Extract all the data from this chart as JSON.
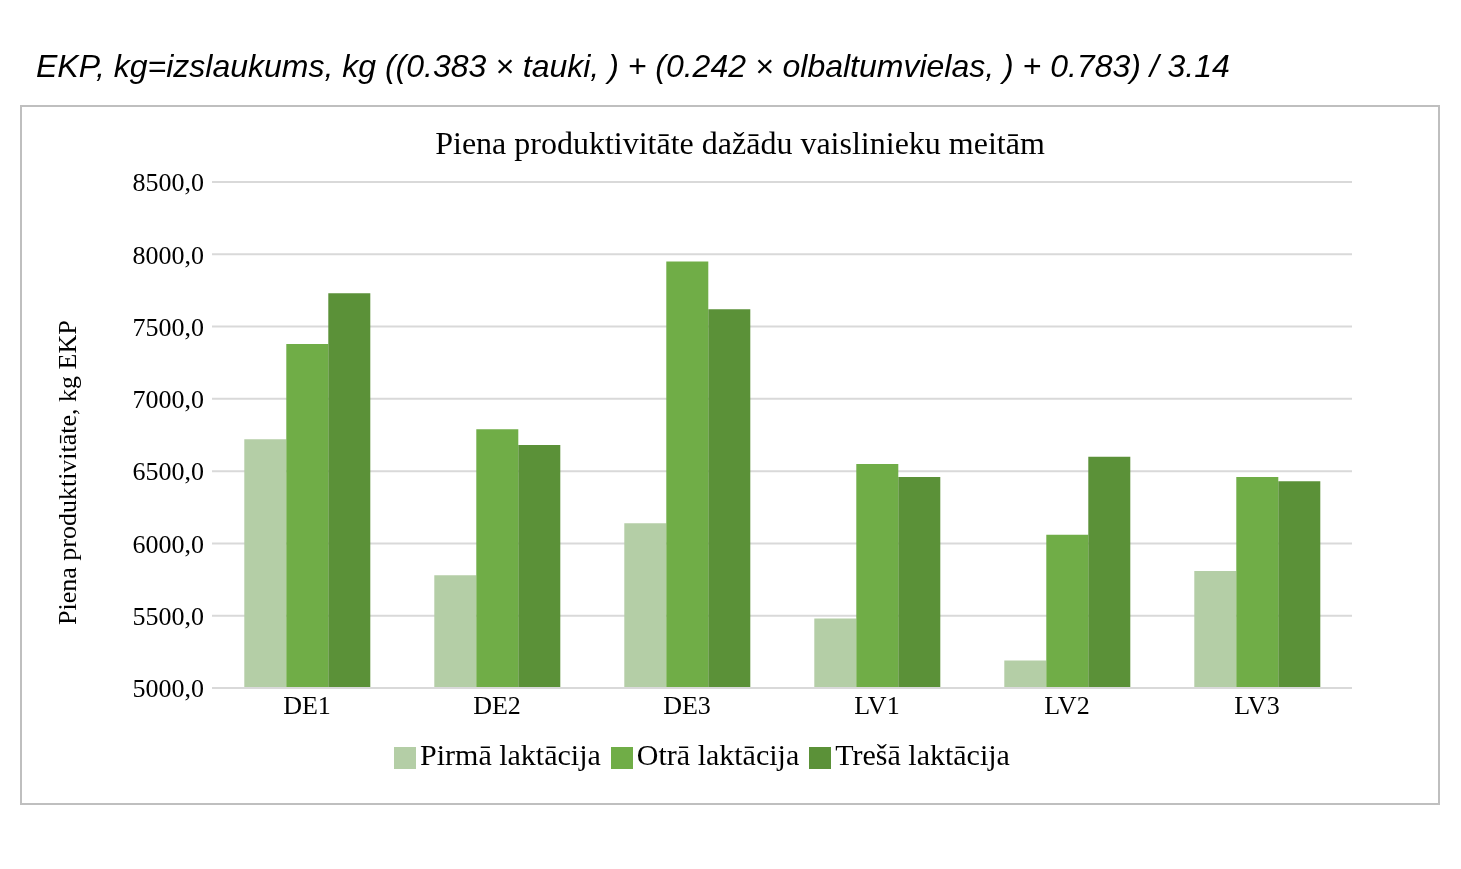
{
  "chart_data": {
    "type": "bar",
    "title": "Piena produktivitāte dažādu vaislinieku meitām",
    "ylabel": "Piena produktivitāte, kg EKP",
    "annotations": [
      "EKP, kg=izslaukums, kg ((0.383 × tauki, ) + (0.242 × olbaltumvielas, ) + 0.783) / 3.14"
    ],
    "categories": [
      "DE1",
      "DE2",
      "DE3",
      "LV1",
      "LV2",
      "LV3"
    ],
    "series": [
      {
        "name": "Pirmā laktācija",
        "color": "#b4cea6",
        "values": [
          6720,
          5780,
          6140,
          5480,
          5190,
          5810
        ]
      },
      {
        "name": "Otrā laktācija",
        "color": "#70ad47",
        "values": [
          7380,
          6790,
          7950,
          6550,
          6060,
          6460
        ]
      },
      {
        "name": "Trešā laktācija",
        "color": "#5b9138",
        "values": [
          7730,
          6680,
          7620,
          6460,
          6600,
          6430
        ]
      }
    ],
    "ylim": [
      5000,
      8500
    ],
    "yticks": [
      {
        "value": 5000,
        "label": "5000,0"
      },
      {
        "value": 5500,
        "label": "5500,0"
      },
      {
        "value": 6000,
        "label": "6000,0"
      },
      {
        "value": 6500,
        "label": "6500,0"
      },
      {
        "value": 7000,
        "label": "7000,0"
      },
      {
        "value": 7500,
        "label": "7500,0"
      },
      {
        "value": 8000,
        "label": "8000,0"
      },
      {
        "value": 8500,
        "label": "8500,0"
      }
    ],
    "grid": "y",
    "legend": "bottom"
  }
}
